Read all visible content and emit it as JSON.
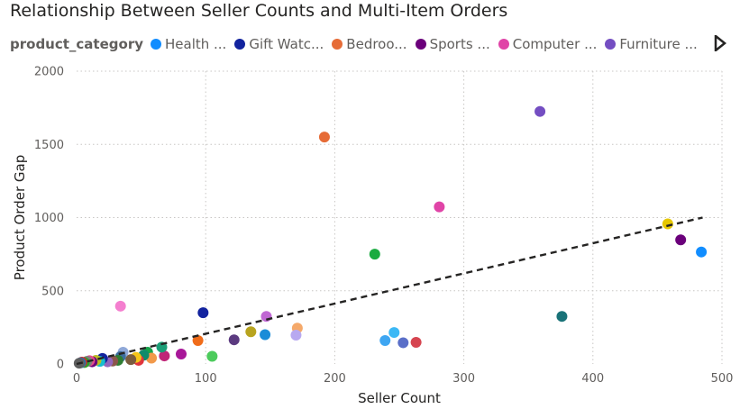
{
  "chart_data": {
    "type": "scatter",
    "title": "Relationship Between Seller Counts and Multi-Item Orders",
    "xlabel": "Seller Count",
    "ylabel": "Product Order Gap",
    "xlim": [
      0,
      500
    ],
    "ylim": [
      0,
      2000
    ],
    "xticks": [
      "0",
      "100",
      "200",
      "300",
      "400",
      "500"
    ],
    "yticks": [
      "0",
      "500",
      "1000",
      "1500",
      "2000"
    ],
    "grid": true,
    "legend_title": "product_category",
    "legend_placement": "top",
    "legend": [
      {
        "label": "Health ...",
        "color": "#118DFF"
      },
      {
        "label": "Gift Watc...",
        "color": "#12239E"
      },
      {
        "label": "Bedroo...",
        "color": "#E66C37"
      },
      {
        "label": "Sports ...",
        "color": "#6B007B"
      },
      {
        "label": "Computer ...",
        "color": "#E044A7"
      },
      {
        "label": "Furniture ...",
        "color": "#744EC2"
      }
    ],
    "trendline": {
      "style": "dashed",
      "x": [
        0,
        485
      ],
      "y": [
        0,
        1000
      ]
    },
    "points": [
      {
        "x": 484,
        "y": 765,
        "color": "#118DFF"
      },
      {
        "x": 468,
        "y": 848,
        "color": "#6B007B"
      },
      {
        "x": 458,
        "y": 957,
        "color": "#E6C700"
      },
      {
        "x": 376,
        "y": 325,
        "color": "#197278"
      },
      {
        "x": 359,
        "y": 1725,
        "color": "#744EC2"
      },
      {
        "x": 281,
        "y": 1073,
        "color": "#E044A7"
      },
      {
        "x": 263,
        "y": 148,
        "color": "#D64550"
      },
      {
        "x": 253,
        "y": 145,
        "color": "#5A6FC8"
      },
      {
        "x": 246,
        "y": 215,
        "color": "#3CB8F5"
      },
      {
        "x": 239,
        "y": 160,
        "color": "#3EA6F2"
      },
      {
        "x": 231,
        "y": 750,
        "color": "#1AAB40"
      },
      {
        "x": 192,
        "y": 1550,
        "color": "#E66C37"
      },
      {
        "x": 171,
        "y": 245,
        "color": "#F5A96A"
      },
      {
        "x": 170,
        "y": 197,
        "color": "#B8A9F0"
      },
      {
        "x": 147,
        "y": 325,
        "color": "#C067D3"
      },
      {
        "x": 146,
        "y": 200,
        "color": "#1B8CD8"
      },
      {
        "x": 135,
        "y": 220,
        "color": "#B8A41F"
      },
      {
        "x": 122,
        "y": 165,
        "color": "#5B3A80"
      },
      {
        "x": 105,
        "y": 52,
        "color": "#4CCB5C"
      },
      {
        "x": 98,
        "y": 350,
        "color": "#12239E"
      },
      {
        "x": 94,
        "y": 160,
        "color": "#F06C1A"
      },
      {
        "x": 81,
        "y": 68,
        "color": "#A81899"
      },
      {
        "x": 68,
        "y": 55,
        "color": "#C02678"
      },
      {
        "x": 66,
        "y": 115,
        "color": "#1B9E77"
      },
      {
        "x": 55,
        "y": 80,
        "color": "#16A34A"
      },
      {
        "x": 58,
        "y": 40,
        "color": "#F2994A"
      },
      {
        "x": 52,
        "y": 60,
        "color": "#0F8A6B"
      },
      {
        "x": 48,
        "y": 25,
        "color": "#E0353D"
      },
      {
        "x": 46,
        "y": 45,
        "color": "#F5C518"
      },
      {
        "x": 42,
        "y": 30,
        "color": "#7A5C3E"
      },
      {
        "x": 36,
        "y": 80,
        "color": "#8FA8D8"
      },
      {
        "x": 34,
        "y": 395,
        "color": "#F47FCF"
      },
      {
        "x": 34,
        "y": 50,
        "color": "#3D6E9E"
      },
      {
        "x": 32,
        "y": 25,
        "color": "#2E7D32"
      },
      {
        "x": 28,
        "y": 20,
        "color": "#8C564B"
      },
      {
        "x": 24,
        "y": 15,
        "color": "#9467BD"
      },
      {
        "x": 20,
        "y": 38,
        "color": "#12239E"
      },
      {
        "x": 18,
        "y": 18,
        "color": "#17BECF"
      },
      {
        "x": 15,
        "y": 25,
        "color": "#BCBD22"
      },
      {
        "x": 12,
        "y": 15,
        "color": "#6B007B"
      },
      {
        "x": 10,
        "y": 22,
        "color": "#E44C8A"
      },
      {
        "x": 8,
        "y": 18,
        "color": "#7F7F7F"
      },
      {
        "x": 6,
        "y": 10,
        "color": "#2CA02C"
      },
      {
        "x": 4,
        "y": 12,
        "color": "#D62728"
      },
      {
        "x": 3,
        "y": 8,
        "color": "#1F77B4"
      },
      {
        "x": 2,
        "y": 5,
        "color": "#5E5E5E"
      }
    ]
  }
}
